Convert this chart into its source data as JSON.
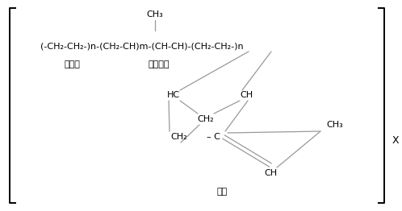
{
  "background_color": "#ffffff",
  "text_color": "#000000",
  "line_color": "#999999",
  "bracket_color": "#000000",
  "ch3_top": "CH₃",
  "formula_part1": "(-CH₂-CH₂-)n-(CH₂-CH)m-(CH-CH)-(CH₂-CH₂-)n",
  "label_ethylene": "에틸렌",
  "label_propylene": "프로필렌",
  "label_diene": "디엔",
  "x_label": "X",
  "figsize": [
    4.98,
    2.62
  ],
  "dpi": 100
}
